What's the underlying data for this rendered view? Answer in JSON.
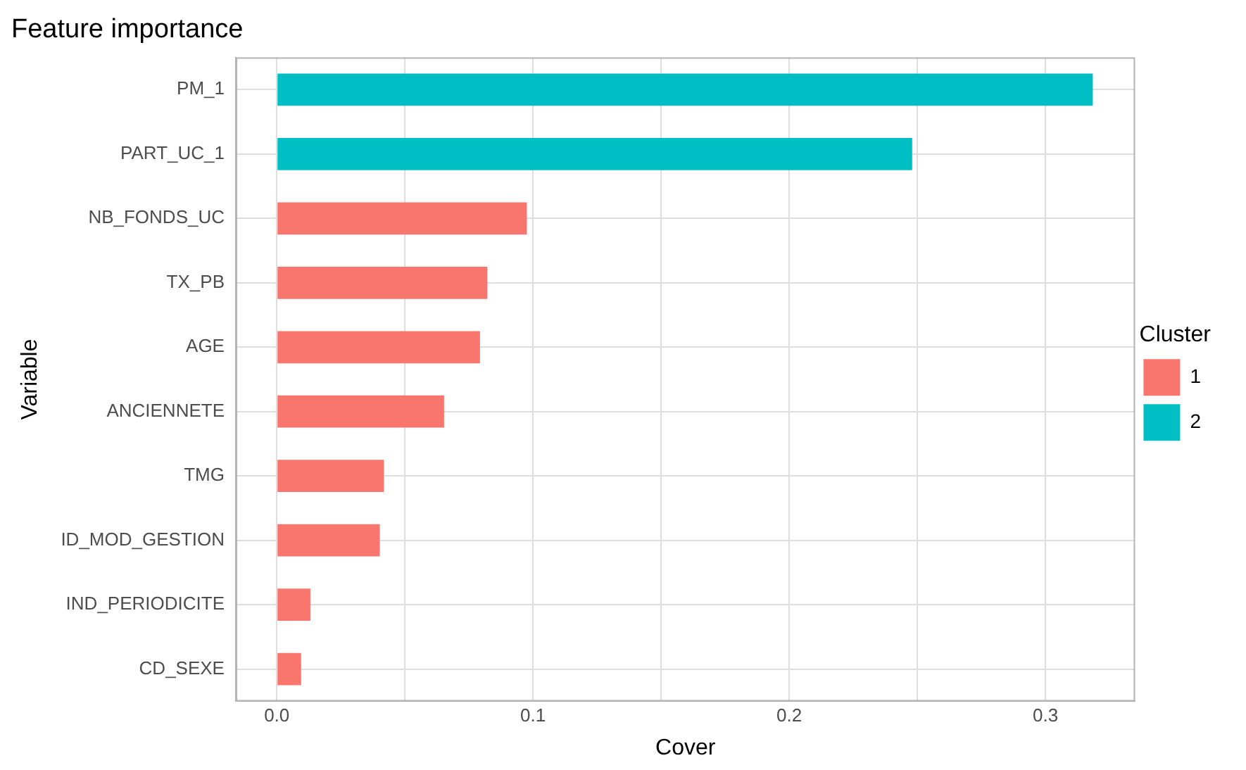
{
  "chart_data": {
    "type": "bar",
    "orientation": "horizontal",
    "title": "Feature importance",
    "xlabel": "Cover",
    "ylabel": "Variable",
    "legend_title": "Cluster",
    "legend": "right",
    "grid": true,
    "categories": [
      "PM_1",
      "PART_UC_1",
      "NB_FONDS_UC",
      "TX_PB",
      "AGE",
      "ANCIENNETE",
      "TMG",
      "ID_MOD_GESTION",
      "IND_PERIODICITE",
      "CD_SEXE"
    ],
    "series": [
      {
        "name": "1",
        "color": "#f8766d",
        "values": [
          null,
          null,
          0.0976,
          0.0822,
          0.0793,
          0.0653,
          0.0418,
          0.0402,
          0.0131,
          0.0095
        ]
      },
      {
        "name": "2",
        "color": "#00bfc4",
        "values": [
          0.3185,
          0.248,
          null,
          null,
          null,
          null,
          null,
          null,
          null,
          null
        ]
      }
    ],
    "xlim": [
      -0.016,
      0.335
    ],
    "xticks": [
      {
        "value": 0,
        "label": "0.0"
      },
      {
        "value": 0.05,
        "label": null
      },
      0.1,
      {
        "value": 0.15,
        "label": null
      },
      0.2,
      {
        "value": 0.25,
        "label": null
      },
      0.3
    ]
  }
}
